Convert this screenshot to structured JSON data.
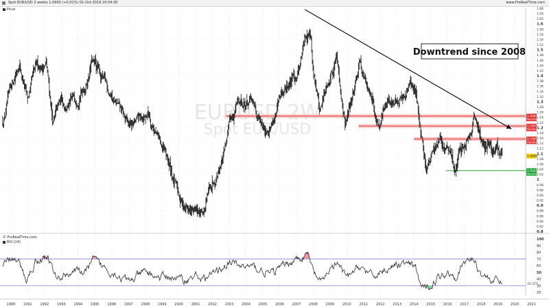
{
  "header": {
    "title": "Spot EUR/USD 2 weeks 1.0900 (+0.01%) 01-Oct-2019 20:54:30",
    "brand": "www.ProRealTime.com"
  },
  "legends": {
    "price": "Price",
    "rsi_source": "© ProRealTime.com",
    "rsi": "RSI (14)"
  },
  "watermark": {
    "line1": "EURUSD 2W",
    "line2": "Spot EUR/USD"
  },
  "annotation": "Downtrend since 2008",
  "chart_data": [
    {
      "type": "line",
      "series_name": "Price",
      "x_start": 1990.0,
      "x_end": 2019.75,
      "x_keypoints": [
        1990.0,
        1990.5,
        1991.0,
        1991.5,
        1992.0,
        1992.6,
        1993.0,
        1993.5,
        1994.0,
        1995.0,
        1995.3,
        1996.0,
        1996.7,
        1997.5,
        1998.0,
        1998.7,
        1999.5,
        2000.0,
        2000.3,
        2000.8,
        2001.5,
        2002.0,
        2002.5,
        2003.0,
        2003.5,
        2004.0,
        2004.8,
        2005.5,
        2006.0,
        2007.0,
        2007.5,
        2008.0,
        2008.3,
        2008.5,
        2008.9,
        2009.3,
        2009.9,
        2010.4,
        2010.6,
        2011.3,
        2011.8,
        2012.4,
        2013.0,
        2013.6,
        2014.3,
        2014.6,
        2015.0,
        2015.2,
        2015.6,
        2016.0,
        2016.5,
        2016.95,
        2017.5,
        2018.1,
        2018.5,
        2018.9,
        2019.3,
        2019.75
      ],
      "y_keypoints": [
        1.22,
        1.34,
        1.46,
        1.3,
        1.42,
        1.45,
        1.22,
        1.3,
        1.28,
        1.38,
        1.46,
        1.38,
        1.3,
        1.2,
        1.22,
        1.26,
        1.12,
        1.04,
        0.97,
        0.9,
        0.86,
        0.88,
        0.99,
        1.08,
        1.2,
        1.3,
        1.3,
        1.18,
        1.22,
        1.36,
        1.4,
        1.54,
        1.6,
        1.42,
        1.26,
        1.38,
        1.49,
        1.2,
        1.25,
        1.48,
        1.32,
        1.22,
        1.32,
        1.28,
        1.38,
        1.32,
        1.15,
        1.05,
        1.1,
        1.13,
        1.11,
        1.04,
        1.14,
        1.25,
        1.16,
        1.14,
        1.12,
        1.09
      ],
      "y_axis_ticks": [
        0.8,
        0.82,
        0.84,
        0.86,
        0.88,
        0.9,
        0.92,
        0.94,
        0.96,
        0.98,
        1,
        1.02,
        1.04,
        1.06,
        1.08,
        1.1,
        1.12,
        1.14,
        1.16,
        1.18,
        1.2,
        1.22,
        1.24,
        1.26,
        1.28,
        1.3,
        1.32,
        1.34,
        1.36,
        1.38,
        1.4,
        1.42,
        1.44,
        1.46,
        1.48,
        1.5,
        1.52,
        1.54,
        1.56,
        1.58,
        1.6,
        1.62,
        1.64,
        1.66
      ],
      "ylim": [
        0.8,
        1.66
      ],
      "x_axis_labels": [
        "1990",
        "1991",
        "1992",
        "1993",
        "1994",
        "1995",
        "1996",
        "1997",
        "1998",
        "1999",
        "2000",
        "2001",
        "2002",
        "2003",
        "2004",
        "2005",
        "2006",
        "2007",
        "2008",
        "2009",
        "2010",
        "2011",
        "2012",
        "2013",
        "2014",
        "2015",
        "2016",
        "2017",
        "2018",
        "2019",
        "2020",
        "2021"
      ],
      "price_labels": [
        {
          "value": 1.2443,
          "label": "1.2443",
          "sub": "Monthly",
          "color": "#e63535"
        },
        {
          "value": 1.2057,
          "label": "1.2057",
          "sub": "Monthly",
          "color": "#e63535"
        },
        {
          "value": 1.1561,
          "label": "1.1561",
          "sub": "Monthly",
          "color": "#e63535"
        },
        {
          "value": 1.09,
          "label": "1.0900",
          "sub": "",
          "color": "#f5d21a"
        },
        {
          "value": 1.0341,
          "label": "1.0341",
          "sub": "Monthly",
          "color": "#22a63a"
        }
      ],
      "horizontal_levels": [
        {
          "value": 1.2443,
          "x_from": 2003.3,
          "color": "#e63535"
        },
        {
          "value": 1.2057,
          "x_from": 2011.2,
          "color": "#e63535"
        },
        {
          "value": 1.1561,
          "x_from": 2014.5,
          "color": "#e63535"
        },
        {
          "value": 1.0341,
          "x_from": 2016.4,
          "color": "#22a63a"
        }
      ],
      "trendline": {
        "x1": 2008.0,
        "y1": 1.655,
        "x2": 2020.3,
        "y2": 1.195
      }
    },
    {
      "type": "line",
      "series_name": "RSI (14)",
      "x_keypoints": [
        1990.0,
        1990.6,
        1991.0,
        1991.4,
        1992.0,
        1992.7,
        1993.2,
        1994.0,
        1995.0,
        1995.4,
        1996.2,
        1997.0,
        1997.5,
        1998.5,
        1999.3,
        2000.0,
        2000.8,
        2001.5,
        2002.0,
        2002.8,
        2003.5,
        2004.0,
        2004.8,
        2006.0,
        2007.0,
        2007.5,
        2008.2,
        2008.5,
        2009.0,
        2009.5,
        2010.0,
        2010.5,
        2011.3,
        2012.0,
        2013.0,
        2014.0,
        2014.6,
        2014.9,
        2015.2,
        2015.8,
        2016.5,
        2017.0,
        2017.5,
        2018.0,
        2018.5,
        2019.0,
        2019.75
      ],
      "y_keypoints": [
        58,
        72,
        62,
        38,
        68,
        74,
        40,
        50,
        52,
        68,
        55,
        44,
        36,
        50,
        42,
        44,
        38,
        45,
        40,
        52,
        66,
        60,
        58,
        48,
        64,
        70,
        76,
        50,
        34,
        56,
        62,
        40,
        60,
        42,
        58,
        62,
        56,
        30,
        24,
        40,
        50,
        46,
        64,
        72,
        48,
        40,
        33.37
      ],
      "ylim": [
        15,
        100
      ],
      "y_axis_ticks": [
        20,
        30,
        40,
        50,
        60,
        70,
        80,
        90,
        100
      ],
      "overbought": 70,
      "oversold": 30,
      "last_label": "33.373"
    }
  ]
}
